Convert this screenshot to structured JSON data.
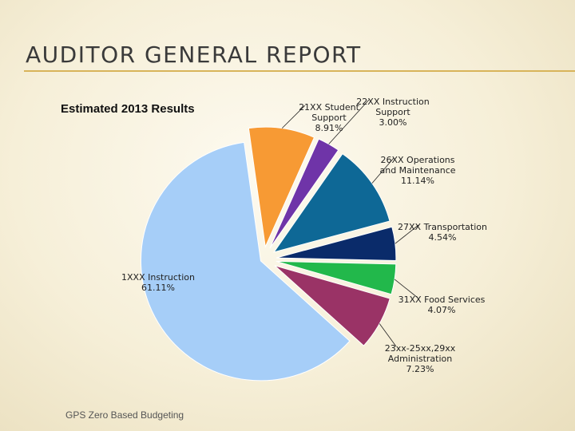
{
  "slide": {
    "title": "AUDITOR GENERAL REPORT",
    "footer": "GPS Zero Based Budgeting"
  },
  "colors": {
    "accent_rule": "#d8b45a",
    "background": "#f6efd8"
  },
  "chart_data": {
    "type": "pie",
    "title": "Estimated 2013 Results",
    "legend": "none",
    "slices": [
      {
        "label": [
          "21XX Student",
          "Support",
          "8.91%"
        ],
        "value": 8.91,
        "color": "#f79a34",
        "exploded": true
      },
      {
        "label": [
          "22XX Instruction",
          "Support",
          "3.00%"
        ],
        "value": 3.0,
        "color": "#6f34a8",
        "exploded": true
      },
      {
        "label": [
          "26XX Operations",
          "and Maintenance",
          "11.14%"
        ],
        "value": 11.14,
        "color": "#0e6896",
        "exploded": true
      },
      {
        "label": [
          "27XX Transportation",
          "4.54%"
        ],
        "value": 4.54,
        "color": "#0a2b6a",
        "exploded": true
      },
      {
        "label": [
          "31XX Food Services",
          "4.07%"
        ],
        "value": 4.07,
        "color": "#22b84b",
        "exploded": true
      },
      {
        "label": [
          "23xx-25xx,29xx",
          "Administration",
          "7.23%"
        ],
        "value": 7.23,
        "color": "#9a3366",
        "exploded": true
      },
      {
        "label": [
          "1XXX Instruction",
          "61.11%"
        ],
        "value": 61.11,
        "color": "#a6cef8",
        "exploded": false
      }
    ]
  }
}
